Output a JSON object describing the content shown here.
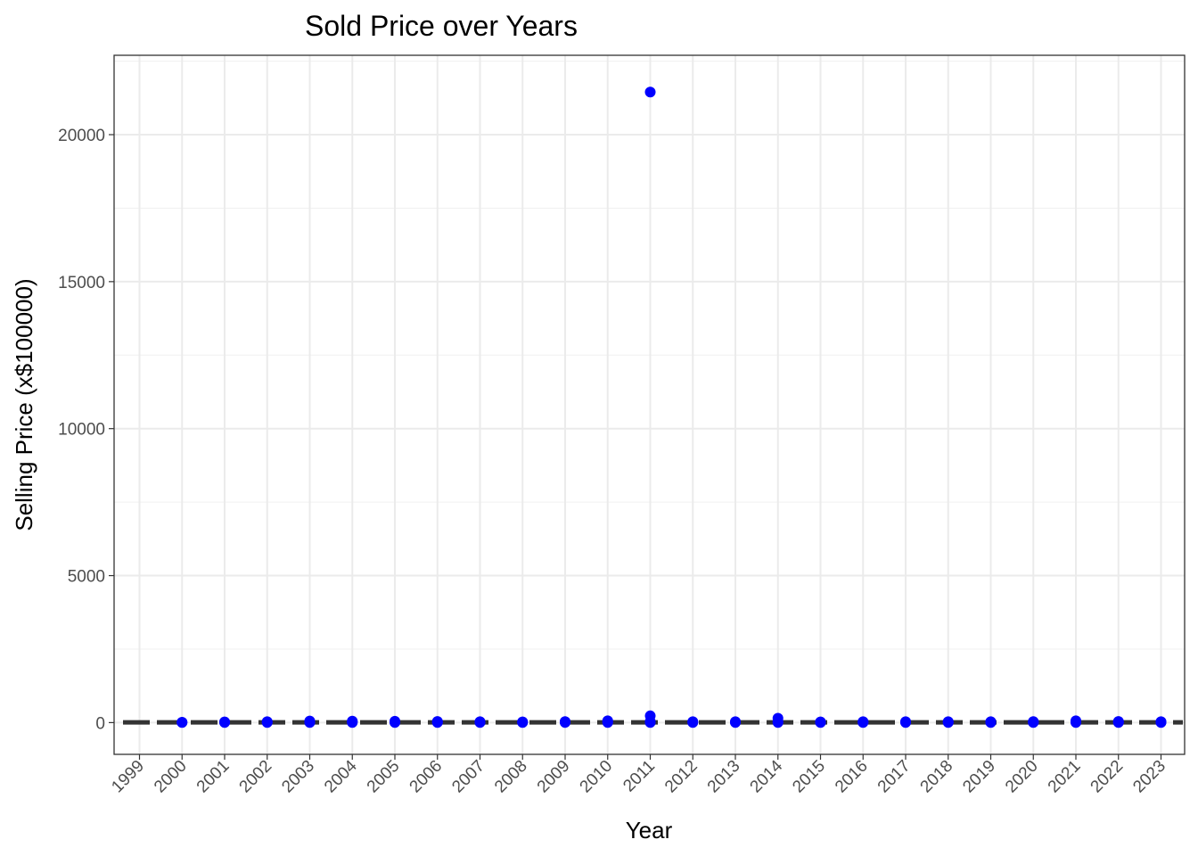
{
  "chart_data": {
    "type": "scatter",
    "title": "Sold Price over Years",
    "xlabel": "Year",
    "ylabel": "Selling Price (x$100000)",
    "categories": [
      "1999",
      "2000",
      "2001",
      "2002",
      "2003",
      "2004",
      "2005",
      "2006",
      "2007",
      "2008",
      "2009",
      "2010",
      "2011",
      "2012",
      "2013",
      "2014",
      "2015",
      "2016",
      "2017",
      "2018",
      "2019",
      "2020",
      "2021",
      "2022",
      "2023"
    ],
    "yticks": [
      0,
      5000,
      10000,
      15000,
      20000
    ],
    "ylim": [
      -1080,
      22700
    ],
    "grid": true,
    "point_color": "#0000ff",
    "series": [
      {
        "points": [
          {
            "x": "2000",
            "y": 5
          },
          {
            "x": "2000",
            "y": 12
          },
          {
            "x": "2001",
            "y": 5
          },
          {
            "x": "2001",
            "y": 15
          },
          {
            "x": "2001",
            "y": 25
          },
          {
            "x": "2002",
            "y": 5
          },
          {
            "x": "2002",
            "y": 20
          },
          {
            "x": "2002",
            "y": 30
          },
          {
            "x": "2003",
            "y": 5
          },
          {
            "x": "2003",
            "y": 25
          },
          {
            "x": "2003",
            "y": 55
          },
          {
            "x": "2004",
            "y": 5
          },
          {
            "x": "2004",
            "y": 30
          },
          {
            "x": "2004",
            "y": 50
          },
          {
            "x": "2005",
            "y": 5
          },
          {
            "x": "2005",
            "y": 25
          },
          {
            "x": "2005",
            "y": 45
          },
          {
            "x": "2006",
            "y": 5
          },
          {
            "x": "2006",
            "y": 20
          },
          {
            "x": "2006",
            "y": 40
          },
          {
            "x": "2007",
            "y": 5
          },
          {
            "x": "2007",
            "y": 20
          },
          {
            "x": "2007",
            "y": 30
          },
          {
            "x": "2008",
            "y": 5
          },
          {
            "x": "2008",
            "y": 15
          },
          {
            "x": "2008",
            "y": 25
          },
          {
            "x": "2009",
            "y": 5
          },
          {
            "x": "2009",
            "y": 25
          },
          {
            "x": "2009",
            "y": 35
          },
          {
            "x": "2010",
            "y": 5
          },
          {
            "x": "2010",
            "y": 30
          },
          {
            "x": "2010",
            "y": 60
          },
          {
            "x": "2011",
            "y": 5
          },
          {
            "x": "2011",
            "y": 40
          },
          {
            "x": "2011",
            "y": 230
          },
          {
            "x": "2011",
            "y": 21450
          },
          {
            "x": "2012",
            "y": 5
          },
          {
            "x": "2012",
            "y": 20
          },
          {
            "x": "2012",
            "y": 30
          },
          {
            "x": "2013",
            "y": 5
          },
          {
            "x": "2013",
            "y": 20
          },
          {
            "x": "2013",
            "y": 30
          },
          {
            "x": "2014",
            "y": 5
          },
          {
            "x": "2014",
            "y": 40
          },
          {
            "x": "2014",
            "y": 150
          },
          {
            "x": "2015",
            "y": 5
          },
          {
            "x": "2015",
            "y": 15
          },
          {
            "x": "2015",
            "y": 25
          },
          {
            "x": "2016",
            "y": 5
          },
          {
            "x": "2016",
            "y": 20
          },
          {
            "x": "2016",
            "y": 30
          },
          {
            "x": "2017",
            "y": 5
          },
          {
            "x": "2017",
            "y": 20
          },
          {
            "x": "2017",
            "y": 30
          },
          {
            "x": "2018",
            "y": 5
          },
          {
            "x": "2018",
            "y": 20
          },
          {
            "x": "2018",
            "y": 30
          },
          {
            "x": "2019",
            "y": 5
          },
          {
            "x": "2019",
            "y": 20
          },
          {
            "x": "2019",
            "y": 30
          },
          {
            "x": "2020",
            "y": 5
          },
          {
            "x": "2020",
            "y": 20
          },
          {
            "x": "2020",
            "y": 35
          },
          {
            "x": "2021",
            "y": 5
          },
          {
            "x": "2021",
            "y": 30
          },
          {
            "x": "2021",
            "y": 60
          },
          {
            "x": "2022",
            "y": 5
          },
          {
            "x": "2022",
            "y": 20
          },
          {
            "x": "2022",
            "y": 40
          },
          {
            "x": "2023",
            "y": 5
          },
          {
            "x": "2023",
            "y": 20
          },
          {
            "x": "2023",
            "y": 30
          }
        ]
      }
    ],
    "reference_line": {
      "style": "dashed",
      "color": "#333333",
      "y": 10
    }
  }
}
